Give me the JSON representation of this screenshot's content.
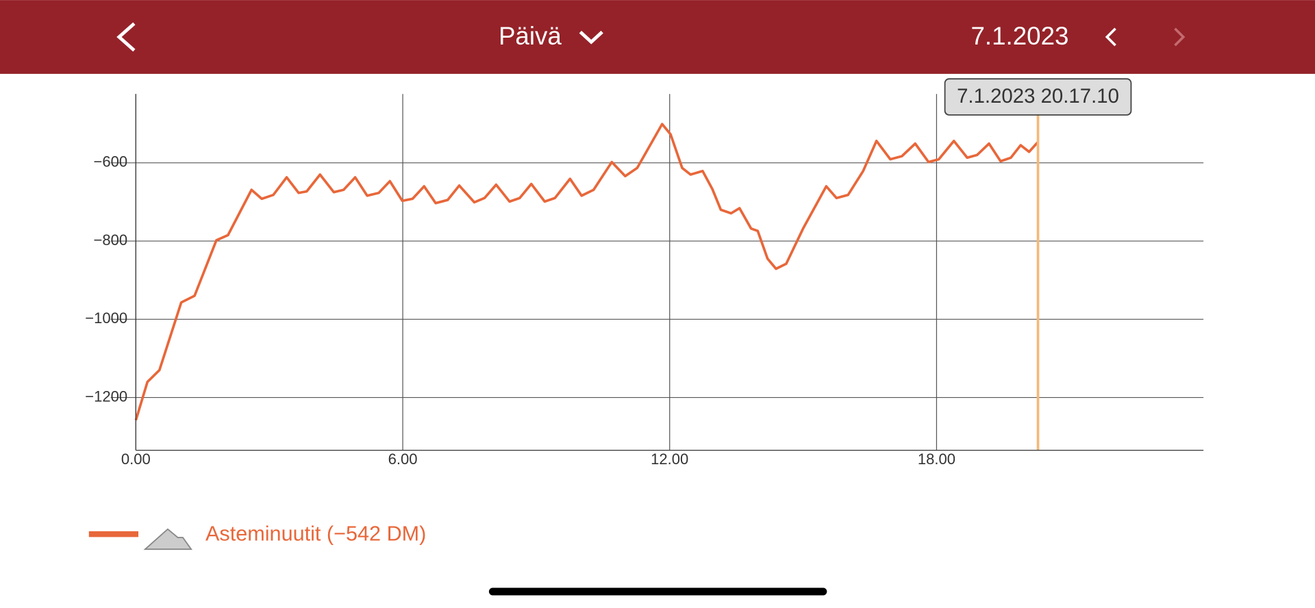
{
  "header": {
    "period": "Päivä",
    "date": "7.1.2023"
  },
  "chart_data": {
    "type": "line",
    "xlim": [
      0,
      24
    ],
    "ylim": [
      -1335,
      -424
    ],
    "xticks": [
      {
        "value": 0,
        "label": "0.00"
      },
      {
        "value": 6,
        "label": "6.00"
      },
      {
        "value": 12,
        "label": "12.00"
      },
      {
        "value": 18,
        "label": "18.00"
      }
    ],
    "yticks": [
      {
        "value": -600,
        "label": "−600"
      },
      {
        "value": -800,
        "label": "−800"
      },
      {
        "value": -1000,
        "label": "−1000"
      },
      {
        "value": -1200,
        "label": "−1200"
      }
    ],
    "grid": true,
    "cursor_x": 20.28,
    "cursor_label": "7.1.2023 20.17.10",
    "series": [
      {
        "name": "Asteminuutit (−542 DM)",
        "color": "#e8673a",
        "x": [
          0,
          0.26,
          0.53,
          1.02,
          1.32,
          1.81,
          2.07,
          2.6,
          2.83,
          3.09,
          3.39,
          3.66,
          3.84,
          4.14,
          4.45,
          4.67,
          4.93,
          5.2,
          5.46,
          5.71,
          5.99,
          6.22,
          6.48,
          6.74,
          7.01,
          7.27,
          7.61,
          7.84,
          8.1,
          8.4,
          8.63,
          8.89,
          9.19,
          9.42,
          9.76,
          10.02,
          10.29,
          10.7,
          11.0,
          11.27,
          11.83,
          12.02,
          12.28,
          12.47,
          12.74,
          12.96,
          13.15,
          13.38,
          13.57,
          13.83,
          13.98,
          14.2,
          14.39,
          14.62,
          15.0,
          15.52,
          15.75,
          16.01,
          16.35,
          16.65,
          16.96,
          17.22,
          17.52,
          17.82,
          18.05,
          18.39,
          18.69,
          18.91,
          19.18,
          19.44,
          19.67,
          19.89,
          20.08,
          20.27
        ],
        "values": [
          -1258,
          -1160,
          -1130,
          -957,
          -940,
          -798,
          -785,
          -669,
          -692,
          -682,
          -637,
          -677,
          -673,
          -630,
          -675,
          -669,
          -637,
          -684,
          -677,
          -647,
          -697,
          -692,
          -660,
          -703,
          -695,
          -658,
          -701,
          -690,
          -656,
          -699,
          -690,
          -654,
          -699,
          -690,
          -641,
          -684,
          -669,
          -598,
          -634,
          -613,
          -501,
          -527,
          -613,
          -630,
          -621,
          -667,
          -720,
          -729,
          -716,
          -768,
          -774,
          -845,
          -871,
          -858,
          -768,
          -660,
          -690,
          -682,
          -621,
          -544,
          -591,
          -583,
          -551,
          -598,
          -591,
          -544,
          -587,
          -580,
          -551,
          -596,
          -587,
          -555,
          -572,
          -548
        ]
      }
    ]
  }
}
